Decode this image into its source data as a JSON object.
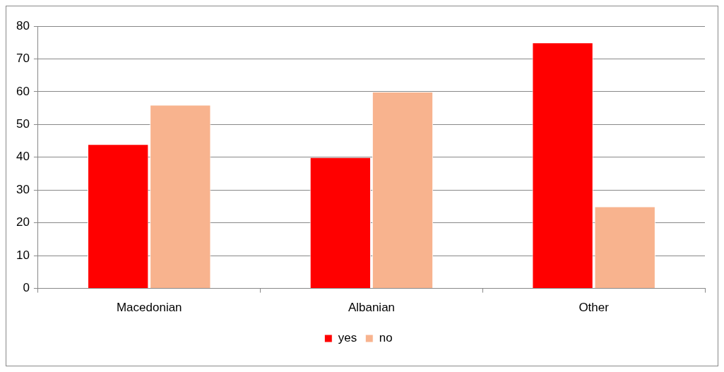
{
  "chart_data": {
    "type": "bar",
    "categories": [
      "Macedonian",
      "Albanian",
      "Other"
    ],
    "series": [
      {
        "name": "yes",
        "color": "#ff0000",
        "values": [
          44,
          40,
          75
        ]
      },
      {
        "name": "no",
        "color": "#f8b38e",
        "values": [
          56,
          60,
          25
        ]
      }
    ],
    "ylim": [
      0,
      80
    ],
    "yticks": [
      0,
      10,
      20,
      30,
      40,
      50,
      60,
      70,
      80
    ],
    "grid": "y",
    "legend": "bottom"
  }
}
